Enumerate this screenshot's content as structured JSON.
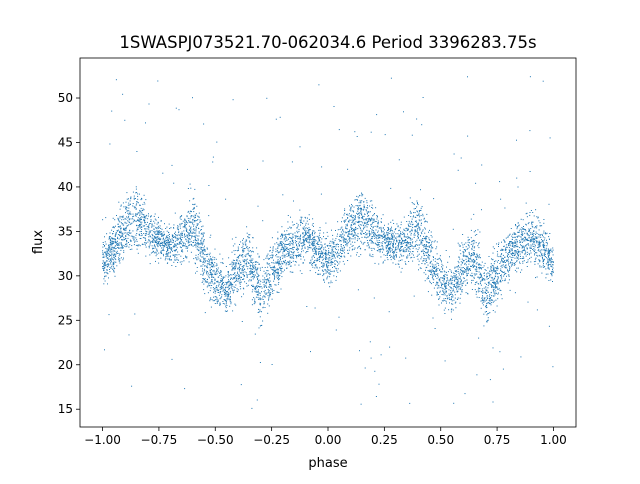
{
  "chart_data": {
    "type": "scatter",
    "title": "1SWASPJ073521.70-062034.6 Period 3396283.75s",
    "xlabel": "phase",
    "ylabel": "flux",
    "xlim": [
      -1.1,
      1.1
    ],
    "ylim": [
      13.0,
      54.5
    ],
    "xticks": [
      -1.0,
      -0.75,
      -0.5,
      -0.25,
      0.0,
      0.25,
      0.5,
      0.75,
      1.0
    ],
    "xtick_labels": [
      "−1.00",
      "−0.75",
      "−0.50",
      "−0.25",
      "0.00",
      "0.25",
      "0.50",
      "0.75",
      "1.00"
    ],
    "yticks": [
      15,
      20,
      25,
      30,
      35,
      40,
      45,
      50
    ],
    "ytick_labels": [
      "15",
      "20",
      "25",
      "30",
      "35",
      "40",
      "45",
      "50"
    ],
    "grid": false,
    "point_color": "#1f77b4",
    "curve": {
      "phase": [
        0.0,
        0.05,
        0.1,
        0.15,
        0.2,
        0.25,
        0.3,
        0.35,
        0.4,
        0.45,
        0.5,
        0.55,
        0.6,
        0.65,
        0.7,
        0.75,
        0.8,
        0.85,
        0.9,
        0.95,
        1.0
      ],
      "flux": [
        31.5,
        33.0,
        35.5,
        36.5,
        35.0,
        34.0,
        33.5,
        34.0,
        35.5,
        32.0,
        29.5,
        28.5,
        31.0,
        32.0,
        28.0,
        30.5,
        32.5,
        33.5,
        34.5,
        33.0,
        31.5
      ],
      "scatter": [
        2.0,
        2.5,
        3.0,
        3.0,
        2.5,
        2.0,
        2.0,
        2.5,
        3.5,
        3.0,
        2.5,
        2.5,
        3.0,
        3.0,
        3.0,
        3.0,
        2.5,
        2.5,
        2.5,
        2.5,
        2.0
      ]
    },
    "n_points": 6000,
    "outlier_fraction": 0.025,
    "outlier_flux_range": [
      15.0,
      52.5
    ]
  }
}
